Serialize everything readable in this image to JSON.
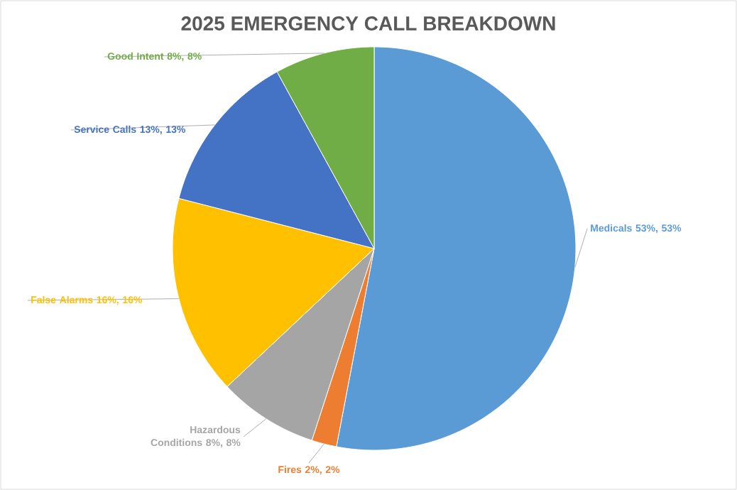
{
  "chart_data": {
    "type": "pie",
    "title": "2025 EMERGENCY CALL BREAKDOWN",
    "categories": [
      "Medicals 53%, 53%",
      "Fires 2%, 2%",
      "Hazardous Conditions 8%, 8%",
      "False Alarms 16%, 16%",
      "Service Calls 13%, 13%",
      "Good Intent 8%, 8%"
    ],
    "values": [
      53,
      2,
      8,
      16,
      13,
      8
    ],
    "colors": [
      "#5b9bd5",
      "#ed7d31",
      "#a5a5a5",
      "#ffc000",
      "#4472c4",
      "#70ad47"
    ]
  }
}
